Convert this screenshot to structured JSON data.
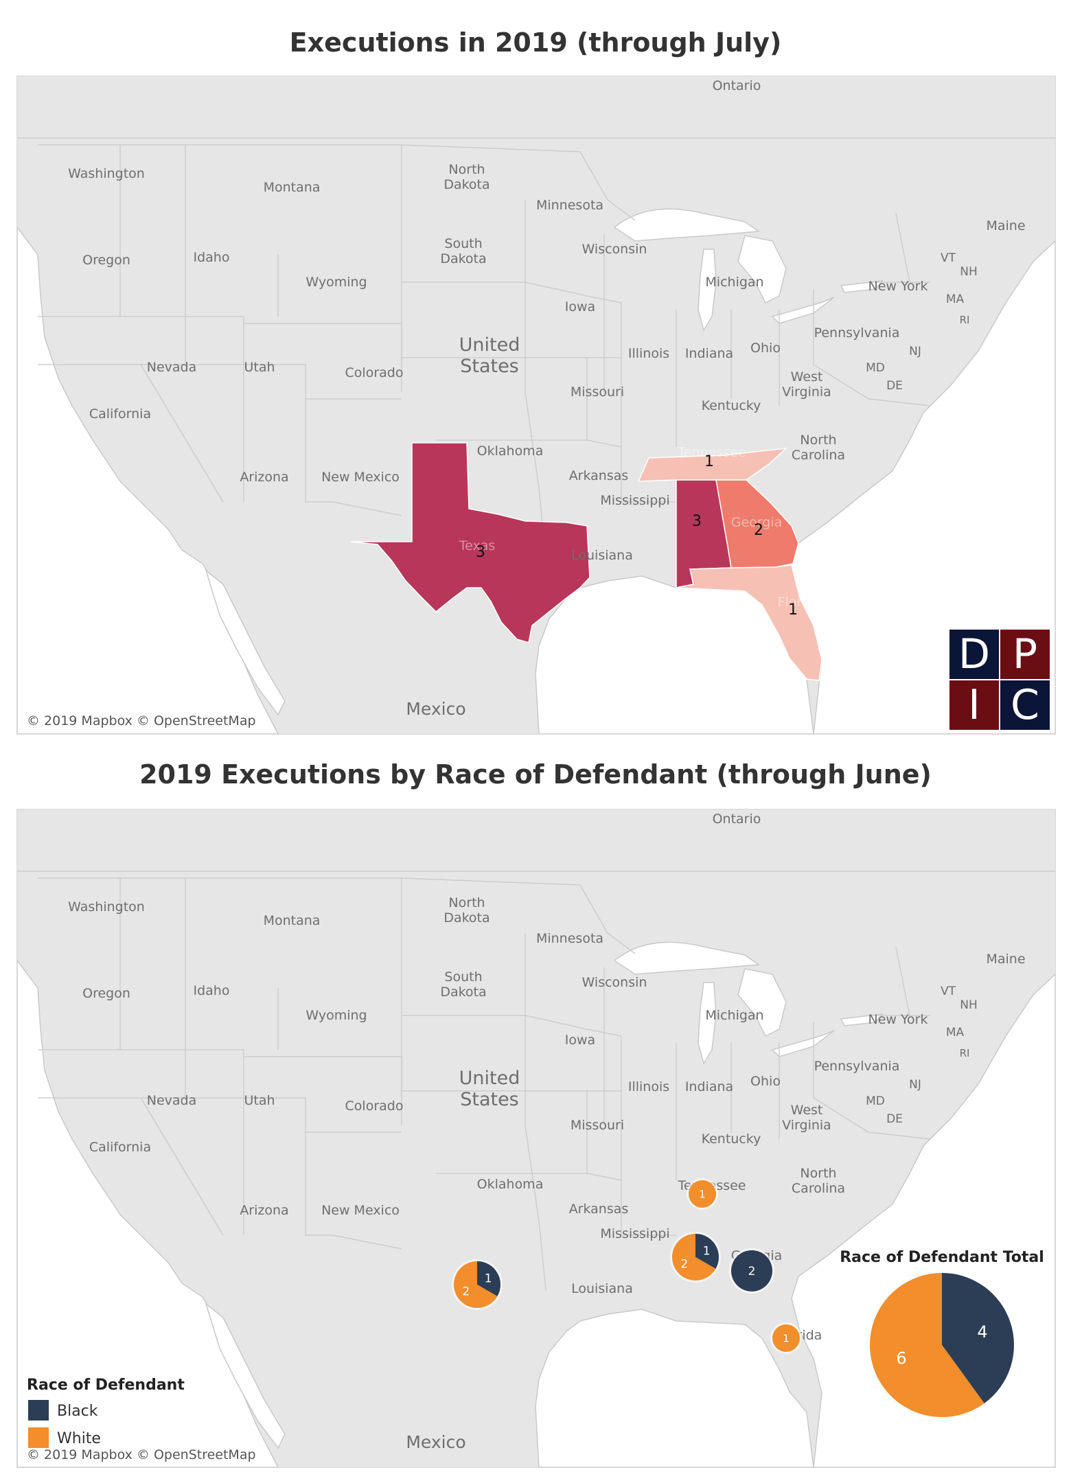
{
  "map1": {
    "title": "Executions in 2019 (through July)",
    "attribution": "© 2019 Mapbox © OpenStreetMap",
    "logo_letters": [
      "D",
      "P",
      "I",
      "C"
    ],
    "colors": {
      "tier3": "#b8365a",
      "tier2": "#ee7b6c",
      "tier1": "#f7c0b4"
    },
    "executions": [
      {
        "state": "Texas",
        "count": 3
      },
      {
        "state": "Alabama",
        "count": 3
      },
      {
        "state": "Georgia",
        "count": 2
      },
      {
        "state": "Tennessee",
        "count": 1
      },
      {
        "state": "Florida",
        "count": 1
      }
    ]
  },
  "map2": {
    "title": "2019 Executions by Race of Defendant (through June)",
    "attribution": "© 2019 Mapbox © OpenStreetMap",
    "legend": {
      "title": "Race of Defendant",
      "items": [
        {
          "label": "Black",
          "color": "#2c3e55"
        },
        {
          "label": "White",
          "color": "#f28e2b"
        }
      ]
    },
    "total_title": "Race of Defendant Total",
    "total": {
      "black": 4,
      "white": 6
    },
    "states": [
      {
        "state": "Texas",
        "white": 2,
        "black": 1
      },
      {
        "state": "Alabama",
        "white": 2,
        "black": 1
      },
      {
        "state": "Georgia",
        "white": 0,
        "black": 2
      },
      {
        "state": "Tennessee",
        "white": 1,
        "black": 0
      },
      {
        "state": "Florida",
        "white": 1,
        "black": 0
      }
    ]
  },
  "place_labels": {
    "ontario": "Ontario",
    "washington": "Washington",
    "montana": "Montana",
    "north_dakota": [
      "North",
      "Dakota"
    ],
    "minnesota": "Minnesota",
    "south_dakota": [
      "South",
      "Dakota"
    ],
    "wisconsin": "Wisconsin",
    "maine": "Maine",
    "vt": "VT",
    "nh": "NH",
    "oregon": "Oregon",
    "idaho": "Idaho",
    "wyoming": "Wyoming",
    "michigan": "Michigan",
    "new_york": "New York",
    "ma": "MA",
    "ri": "RI",
    "iowa": "Iowa",
    "united_states": [
      "United",
      "States"
    ],
    "pennsylvania": "Pennsylvania",
    "nj": "NJ",
    "md": "MD",
    "de": "DE",
    "illinois": "Illinois",
    "indiana": "Indiana",
    "ohio": "Ohio",
    "nevada": "Nevada",
    "utah": "Utah",
    "colorado": "Colorado",
    "west_virginia": [
      "West",
      "Virginia"
    ],
    "california": "California",
    "missouri": "Missouri",
    "kentucky": "Kentucky",
    "tennessee": "Tennessee",
    "north_carolina": [
      "North",
      "Carolina"
    ],
    "oklahoma": "Oklahoma",
    "arizona": "Arizona",
    "new_mexico": "New Mexico",
    "arkansas": "Arkansas",
    "mississippi": "Mississippi",
    "georgia": "Georgia",
    "texas": "Texas",
    "louisiana": "Louisiana",
    "florida": "Florida",
    "mexico": "Mexico"
  }
}
